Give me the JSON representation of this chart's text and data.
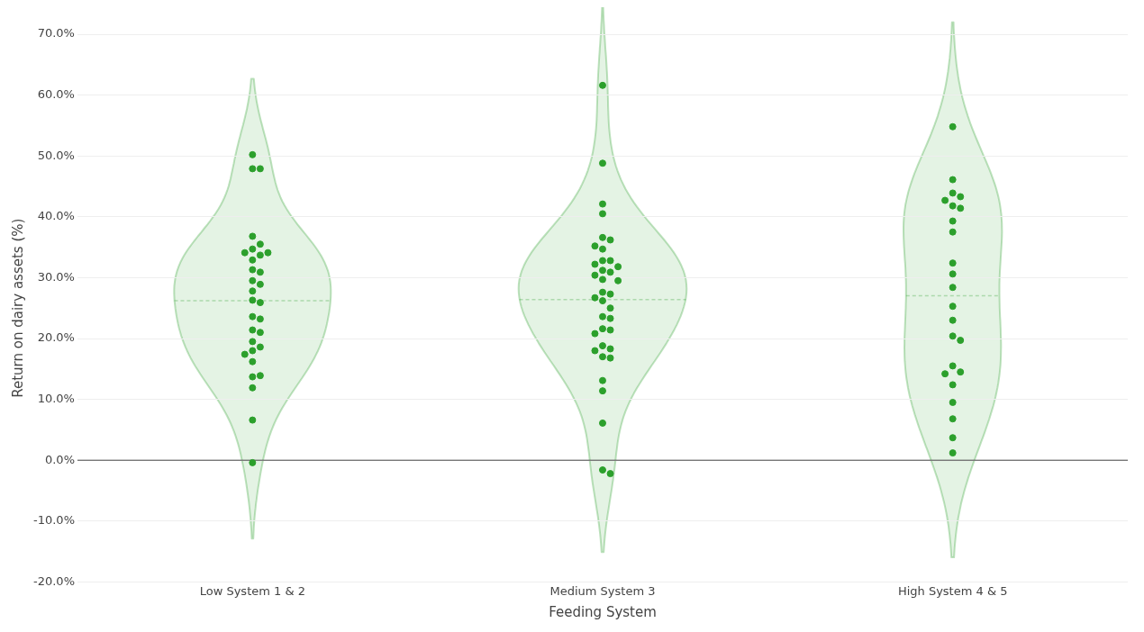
{
  "chart_data": {
    "type": "scatter",
    "xlabel": "Feeding System",
    "ylabel": "Return on dairy assets (%)",
    "categories": [
      "Low System 1 & 2",
      "Medium System 3",
      "High System 4 & 5"
    ],
    "series": [
      {
        "color": "#2ca02c",
        "x": [
          "Low System 1 & 2",
          "Low System 1 & 2",
          "Low System 1 & 2",
          "Low System 1 & 2",
          "Low System 1 & 2",
          "Low System 1 & 2",
          "Low System 1 & 2",
          "Low System 1 & 2",
          "Low System 1 & 2",
          "Low System 1 & 2",
          "Low System 1 & 2",
          "Low System 1 & 2",
          "Low System 1 & 2",
          "Low System 1 & 2",
          "Low System 1 & 2",
          "Low System 1 & 2",
          "Low System 1 & 2",
          "Low System 1 & 2",
          "Low System 1 & 2",
          "Low System 1 & 2",
          "Low System 1 & 2",
          "Low System 1 & 2",
          "Low System 1 & 2",
          "Low System 1 & 2",
          "Low System 1 & 2",
          "Low System 1 & 2",
          "Low System 1 & 2",
          "Low System 1 & 2",
          "Low System 1 & 2",
          "Low System 1 & 2",
          "Low System 1 & 2"
        ],
        "values": [
          50.2,
          47.9,
          47.9,
          36.8,
          35.5,
          34.7,
          34.1,
          34.1,
          33.7,
          32.9,
          31.3,
          30.9,
          29.5,
          28.9,
          27.8,
          26.3,
          25.9,
          23.6,
          23.2,
          21.4,
          21.0,
          19.5,
          18.6,
          18.0,
          17.4,
          16.2,
          13.7,
          13.9,
          11.9,
          6.6,
          -0.4
        ]
      },
      {
        "color": "#2ca02c",
        "x": [
          "Medium System 3",
          "Medium System 3",
          "Medium System 3",
          "Medium System 3",
          "Medium System 3",
          "Medium System 3",
          "Medium System 3",
          "Medium System 3",
          "Medium System 3",
          "Medium System 3",
          "Medium System 3",
          "Medium System 3",
          "Medium System 3",
          "Medium System 3",
          "Medium System 3",
          "Medium System 3",
          "Medium System 3",
          "Medium System 3",
          "Medium System 3",
          "Medium System 3",
          "Medium System 3",
          "Medium System 3",
          "Medium System 3",
          "Medium System 3",
          "Medium System 3",
          "Medium System 3",
          "Medium System 3",
          "Medium System 3",
          "Medium System 3",
          "Medium System 3",
          "Medium System 3",
          "Medium System 3",
          "Medium System 3",
          "Medium System 3",
          "Medium System 3",
          "Medium System 3",
          "Medium System 3"
        ],
        "values": [
          61.6,
          48.8,
          42.1,
          40.5,
          36.6,
          36.2,
          35.2,
          34.7,
          32.8,
          32.8,
          32.2,
          31.8,
          31.2,
          30.9,
          30.4,
          29.7,
          29.5,
          27.6,
          27.3,
          26.7,
          26.2,
          25.0,
          23.6,
          23.3,
          21.6,
          21.4,
          20.8,
          18.8,
          18.3,
          18.0,
          17.0,
          16.8,
          13.1,
          11.4,
          6.1,
          -1.6,
          -2.2
        ]
      },
      {
        "color": "#2ca02c",
        "x": [
          "High System 4 & 5",
          "High System 4 & 5",
          "High System 4 & 5",
          "High System 4 & 5",
          "High System 4 & 5",
          "High System 4 & 5",
          "High System 4 & 5",
          "High System 4 & 5",
          "High System 4 & 5",
          "High System 4 & 5",
          "High System 4 & 5",
          "High System 4 & 5",
          "High System 4 & 5",
          "High System 4 & 5",
          "High System 4 & 5",
          "High System 4 & 5",
          "High System 4 & 5",
          "High System 4 & 5",
          "High System 4 & 5",
          "High System 4 & 5",
          "High System 4 & 5",
          "High System 4 & 5",
          "High System 4 & 5",
          "High System 4 & 5"
        ],
        "values": [
          54.8,
          46.1,
          43.9,
          43.3,
          42.7,
          41.8,
          41.4,
          39.3,
          37.5,
          32.4,
          30.6,
          28.4,
          25.3,
          23.0,
          20.4,
          19.7,
          15.5,
          14.5,
          14.2,
          12.4,
          9.5,
          6.8,
          3.7,
          1.2
        ]
      }
    ],
    "ylim": [
      -20,
      70
    ],
    "yticks": [
      {
        "value": -20,
        "label": "-20.0%"
      },
      {
        "value": -10,
        "label": "-10.0%"
      },
      {
        "value": 0,
        "label": "0.0%"
      },
      {
        "value": 10,
        "label": "10.0%"
      },
      {
        "value": 20,
        "label": "20.0%"
      },
      {
        "value": 30,
        "label": "30.0%"
      },
      {
        "value": 40,
        "label": "40.0%"
      },
      {
        "value": 50,
        "label": "50.0%"
      },
      {
        "value": 60,
        "label": "60.0%"
      },
      {
        "value": 70,
        "label": "70.0%"
      }
    ],
    "grid": "y",
    "legend": false,
    "marker": "circle",
    "ref_lines": [
      {
        "axis": "y",
        "value": 0,
        "color": "#444444"
      }
    ]
  }
}
